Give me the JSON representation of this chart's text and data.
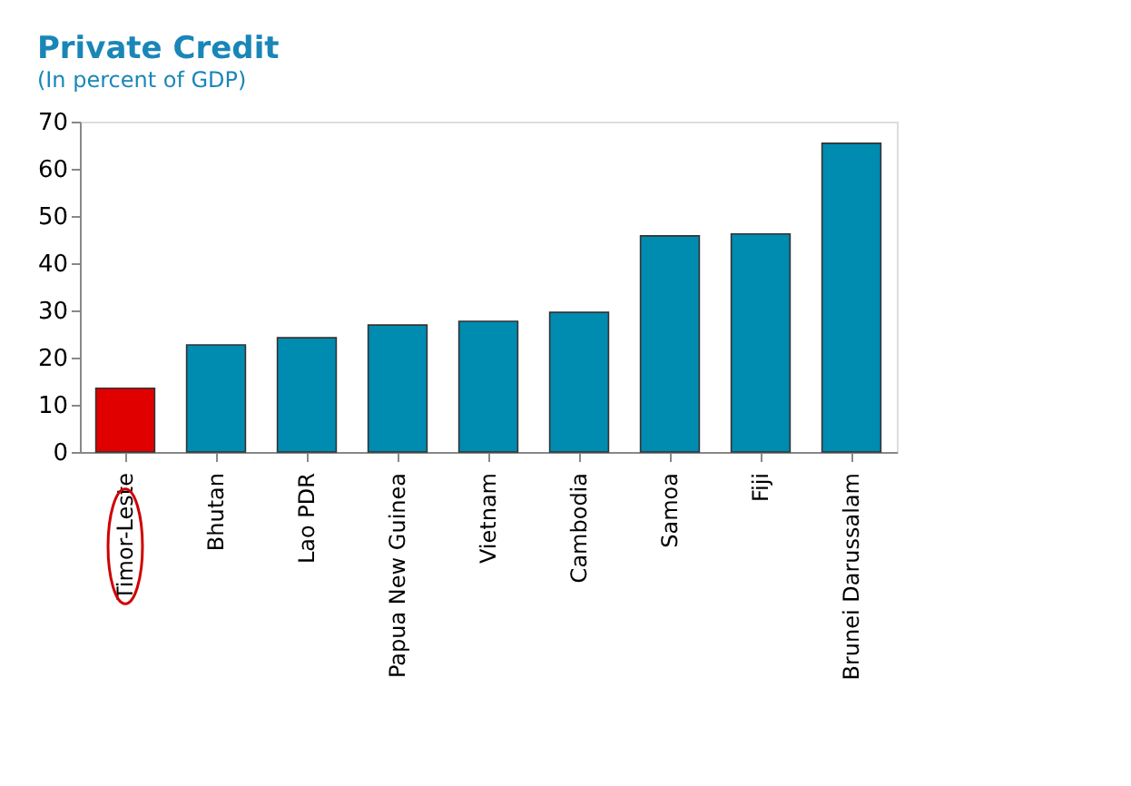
{
  "chart_data": {
    "type": "bar",
    "title": "Private Credit",
    "subtitle": "(In percent of GDP)",
    "categories": [
      "Timor-Leste",
      "Bhutan",
      "Lao PDR",
      "Papua New Guinea",
      "Vietnam",
      "Cambodia",
      "Samoa",
      "Fiji",
      "Brunei Darussalam"
    ],
    "values": [
      13.5,
      22.7,
      24.2,
      26.9,
      27.7,
      29.6,
      45.8,
      46.2,
      65.4
    ],
    "colors": [
      "#e00000",
      "#008bb0",
      "#008bb0",
      "#008bb0",
      "#008bb0",
      "#008bb0",
      "#008bb0",
      "#008bb0",
      "#008bb0"
    ],
    "ylim": [
      0,
      70
    ],
    "yticks": [
      0,
      10,
      20,
      30,
      40,
      50,
      60,
      70
    ],
    "grid": false
  }
}
